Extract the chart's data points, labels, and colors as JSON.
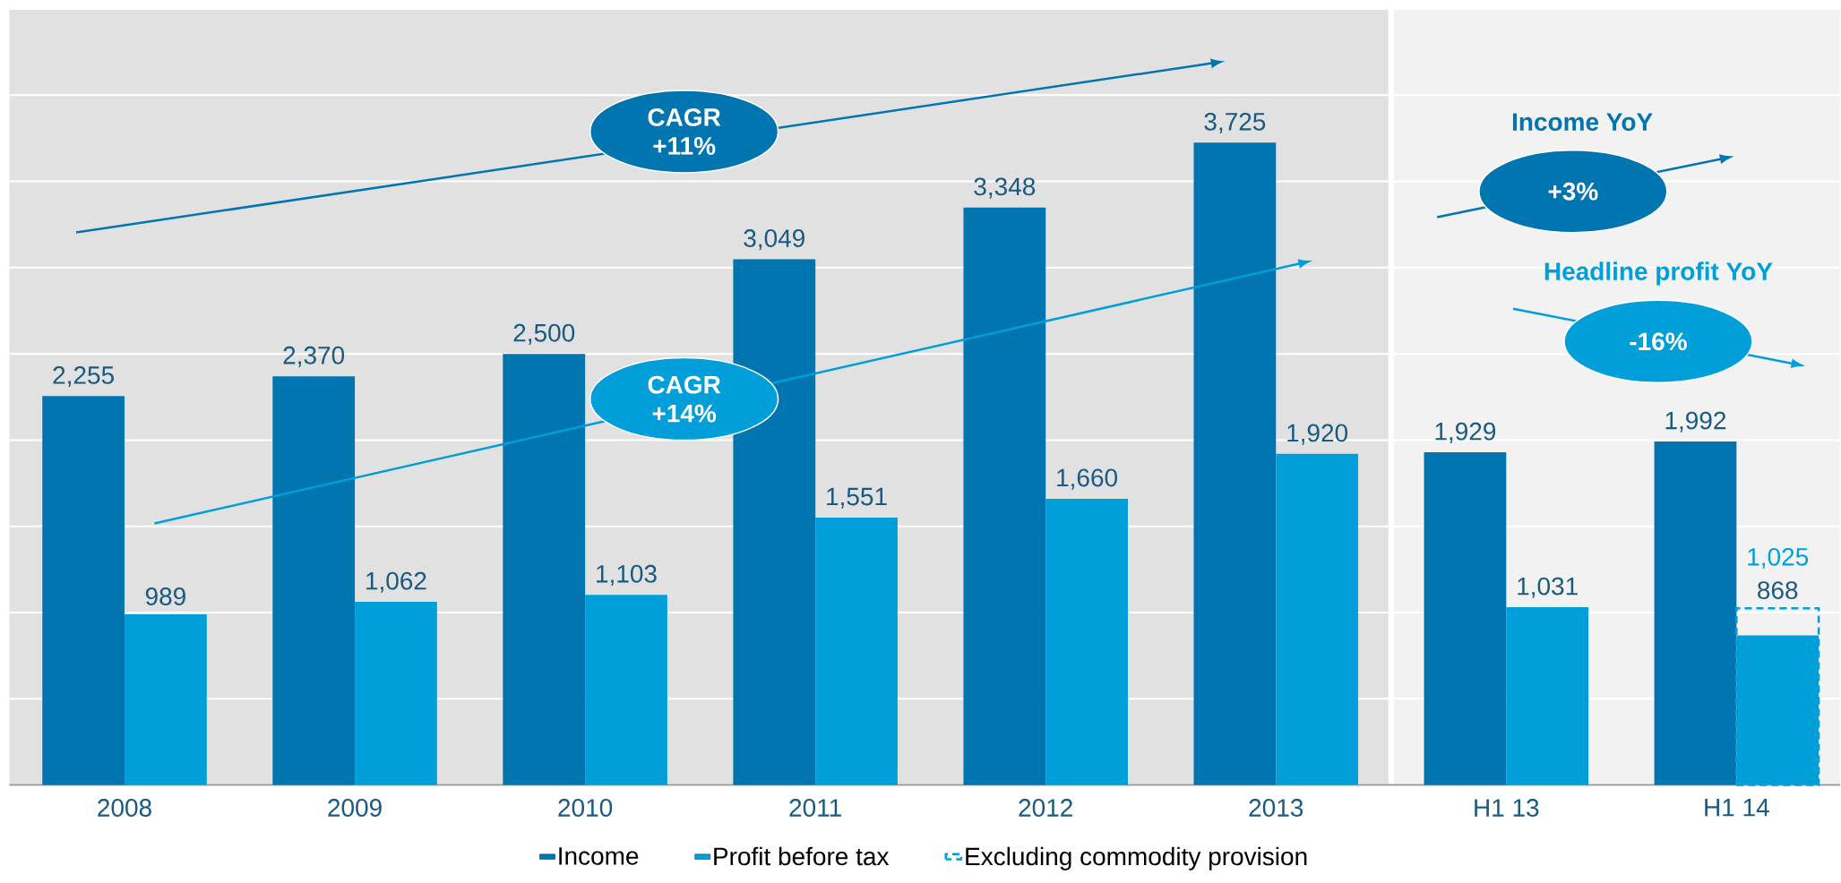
{
  "chart_data": {
    "type": "bar",
    "categories": [
      "2008",
      "2009",
      "2010",
      "2011",
      "2012",
      "2013",
      "H1 13",
      "H1 14"
    ],
    "series": [
      {
        "name": "Income",
        "color": "#0075b0",
        "values": [
          2255,
          2370,
          2500,
          3049,
          3348,
          3725,
          1929,
          1992
        ],
        "value_labels": [
          "2,255",
          "2,370",
          "2,500",
          "3,049",
          "3,348",
          "3,725",
          "1,929",
          "1,992"
        ]
      },
      {
        "name": "Profit before tax",
        "color": "#009fda",
        "values": [
          989,
          1062,
          1103,
          1551,
          1660,
          1920,
          1031,
          868
        ],
        "value_labels": [
          "989",
          "1,062",
          "1,103",
          "1,551",
          "1,660",
          "1,920",
          "1,031",
          "868"
        ]
      },
      {
        "name": "Excluding commodity provision",
        "color": "#009fda",
        "line_style": "dashed",
        "values": [
          null,
          null,
          null,
          null,
          null,
          null,
          null,
          1025
        ],
        "value_labels": [
          null,
          null,
          null,
          null,
          null,
          null,
          null,
          "1,025"
        ]
      }
    ],
    "ylim": [
      0,
      4500
    ],
    "yticks": [
      {
        "value": 0,
        "label": null
      },
      {
        "value": 500,
        "label": null
      },
      {
        "value": 1000,
        "label": null
      },
      {
        "value": 1500,
        "label": null
      },
      {
        "value": 2000,
        "label": null
      },
      {
        "value": 2500,
        "label": null
      },
      {
        "value": 3000,
        "label": null
      },
      {
        "value": 3500,
        "label": null
      },
      {
        "value": 4000,
        "label": null
      },
      {
        "value": 4500,
        "label": null
      }
    ],
    "tick_labels": "x",
    "grid": "y",
    "legend": "bottom",
    "annotations": [
      "CAGR +11%",
      "CAGR +14%",
      "Income YoY",
      "+3%",
      "Headline profit YoY",
      "-16%"
    ]
  }
}
